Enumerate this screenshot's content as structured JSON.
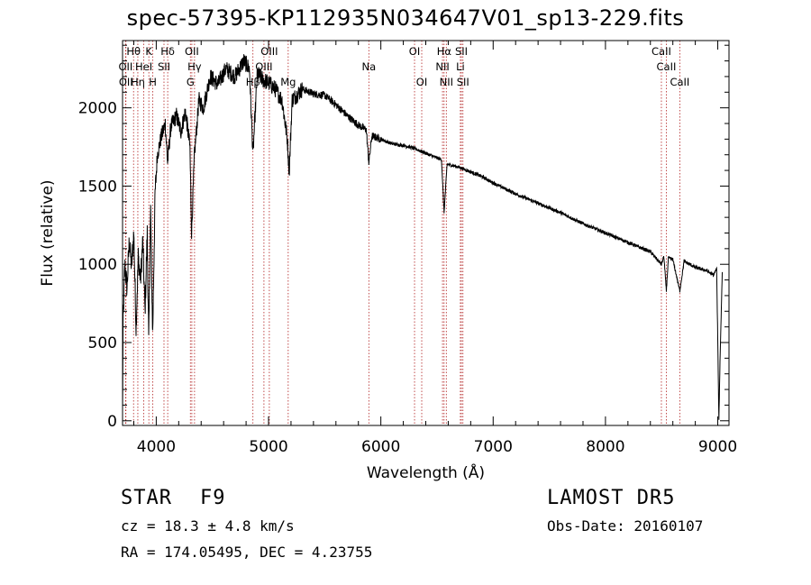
{
  "title": "spec-57395-KP112935N034647V01_sp13-229.fits",
  "footer": {
    "class_label": "STAR",
    "subclass": "F9",
    "survey": "LAMOST DR5",
    "cz": "cz = 18.3 ± 4.8 km/s",
    "obs_date": "Obs-Date: 20160107",
    "coords": "RA = 174.05495, DEC =   4.23755"
  },
  "chart_data": {
    "type": "line",
    "title": "spec-57395-KP112935N034647V01_sp13-229.fits",
    "xlabel": "Wavelength (Å)",
    "ylabel": "Flux (relative)",
    "xlim": [
      3700,
      9100
    ],
    "ylim": [
      -30,
      2430
    ],
    "x_ticks": [
      4000,
      5000,
      6000,
      7000,
      8000,
      9000
    ],
    "y_ticks": [
      0,
      500,
      1000,
      1500,
      2000
    ],
    "line_color": "#000000",
    "marker_color": "#b22222",
    "spectrum_anchor_points": [
      [
        3700,
        40
      ],
      [
        3705,
        620
      ],
      [
        3720,
        1000
      ],
      [
        3740,
        850
      ],
      [
        3760,
        1150
      ],
      [
        3780,
        980
      ],
      [
        3800,
        1200
      ],
      [
        3820,
        600
      ],
      [
        3840,
        1050
      ],
      [
        3860,
        900
      ],
      [
        3880,
        1150
      ],
      [
        3900,
        700
      ],
      [
        3920,
        1200
      ],
      [
        3933,
        500
      ],
      [
        3950,
        1350
      ],
      [
        3968,
        550
      ],
      [
        3990,
        1450
      ],
      [
        4010,
        1700
      ],
      [
        4040,
        1800
      ],
      [
        4080,
        1900
      ],
      [
        4101,
        1650
      ],
      [
        4130,
        1880
      ],
      [
        4180,
        1950
      ],
      [
        4220,
        1850
      ],
      [
        4260,
        1980
      ],
      [
        4300,
        1750
      ],
      [
        4315,
        1200
      ],
      [
        4340,
        1700
      ],
      [
        4380,
        2050
      ],
      [
        4420,
        2000
      ],
      [
        4480,
        2200
      ],
      [
        4550,
        2150
      ],
      [
        4620,
        2250
      ],
      [
        4700,
        2200
      ],
      [
        4780,
        2300
      ],
      [
        4830,
        2250
      ],
      [
        4861,
        1700
      ],
      [
        4900,
        2220
      ],
      [
        4950,
        2180
      ],
      [
        5000,
        2160
      ],
      [
        5060,
        2120
      ],
      [
        5120,
        2050
      ],
      [
        5167,
        1800
      ],
      [
        5184,
        1580
      ],
      [
        5210,
        2050
      ],
      [
        5300,
        2120
      ],
      [
        5400,
        2090
      ],
      [
        5500,
        2080
      ],
      [
        5600,
        2020
      ],
      [
        5700,
        1950
      ],
      [
        5800,
        1890
      ],
      [
        5870,
        1860
      ],
      [
        5893,
        1650
      ],
      [
        5920,
        1820
      ],
      [
        6000,
        1800
      ],
      [
        6100,
        1770
      ],
      [
        6200,
        1760
      ],
      [
        6300,
        1740
      ],
      [
        6400,
        1710
      ],
      [
        6500,
        1680
      ],
      [
        6540,
        1670
      ],
      [
        6563,
        1330
      ],
      [
        6590,
        1640
      ],
      [
        6700,
        1620
      ],
      [
        6800,
        1590
      ],
      [
        6900,
        1560
      ],
      [
        7000,
        1520
      ],
      [
        7200,
        1450
      ],
      [
        7400,
        1390
      ],
      [
        7600,
        1330
      ],
      [
        7800,
        1260
      ],
      [
        8000,
        1200
      ],
      [
        8200,
        1140
      ],
      [
        8400,
        1080
      ],
      [
        8498,
        1000
      ],
      [
        8520,
        1050
      ],
      [
        8542,
        830
      ],
      [
        8560,
        1040
      ],
      [
        8600,
        1030
      ],
      [
        8662,
        830
      ],
      [
        8700,
        1020
      ],
      [
        8800,
        980
      ],
      [
        8900,
        960
      ],
      [
        8960,
        930
      ],
      [
        8990,
        970
      ],
      [
        9000,
        520
      ],
      [
        9010,
        0
      ],
      [
        9020,
        380
      ],
      [
        9040,
        950
      ]
    ],
    "line_markers": [
      {
        "label": "Hθ",
        "x": 3798,
        "row": 0
      },
      {
        "label": "K",
        "x": 3934,
        "row": 0
      },
      {
        "label": "Hδ",
        "x": 4102,
        "row": 0
      },
      {
        "label": "OII",
        "x": 4317,
        "row": 0
      },
      {
        "label": "OIII",
        "x": 5007,
        "row": 0
      },
      {
        "label": "OI",
        "x": 6300,
        "row": 0
      },
      {
        "label": "Hα",
        "x": 6563,
        "row": 0
      },
      {
        "label": "SII",
        "x": 6717,
        "row": 0
      },
      {
        "label": "CaII",
        "x": 8498,
        "row": 0
      },
      {
        "label": "OII",
        "x": 3727,
        "row": 1
      },
      {
        "label": "HeI",
        "x": 3889,
        "row": 1
      },
      {
        "label": "SII",
        "x": 4069,
        "row": 1
      },
      {
        "label": "Hγ",
        "x": 4341,
        "row": 1
      },
      {
        "label": "OIII",
        "x": 4959,
        "row": 1
      },
      {
        "label": "Na",
        "x": 5893,
        "row": 1
      },
      {
        "label": "NII",
        "x": 6549,
        "row": 1
      },
      {
        "label": "Li",
        "x": 6708,
        "row": 1
      },
      {
        "label": "CaII",
        "x": 8542,
        "row": 1
      },
      {
        "label": "OII",
        "x": 3730,
        "row": 2
      },
      {
        "label": "Hη",
        "x": 3836,
        "row": 2
      },
      {
        "label": "H",
        "x": 3969,
        "row": 2
      },
      {
        "label": "G",
        "x": 4304,
        "row": 2
      },
      {
        "label": "Hβ",
        "x": 4861,
        "row": 2
      },
      {
        "label": "Mg",
        "x": 5175,
        "row": 2
      },
      {
        "label": "OI",
        "x": 6364,
        "row": 2
      },
      {
        "label": "NII",
        "x": 6583,
        "row": 2
      },
      {
        "label": "SII",
        "x": 6731,
        "row": 2
      },
      {
        "label": "CaII",
        "x": 8662,
        "row": 2
      }
    ]
  }
}
